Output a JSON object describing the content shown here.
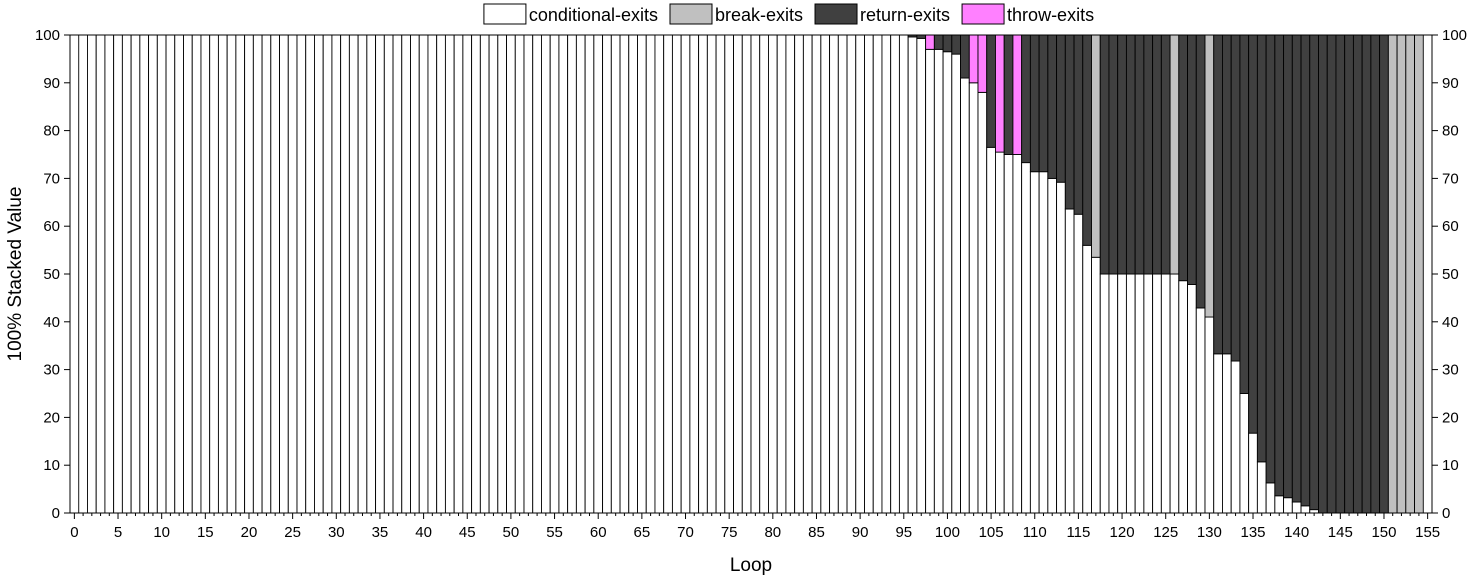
{
  "chart_data": {
    "type": "bar",
    "stacked": "percent",
    "xlabel": "Loop",
    "ylabel": "100% Stacked Value",
    "ylim": [
      0,
      100
    ],
    "y_ticks": [
      0,
      10,
      20,
      30,
      40,
      50,
      60,
      70,
      80,
      90,
      100
    ],
    "x_ticks": [
      0,
      5,
      10,
      15,
      20,
      25,
      30,
      35,
      40,
      45,
      50,
      55,
      60,
      65,
      70,
      75,
      80,
      85,
      90,
      95,
      100,
      105,
      110,
      115,
      120,
      125,
      130,
      135,
      140,
      145,
      150,
      155
    ],
    "x_range": [
      0,
      155
    ],
    "grid": false,
    "secondary_y_axis": true,
    "legend_position": "top-center",
    "colors": {
      "conditional-exits": "#ffffff",
      "break-exits": "#c0c0c0",
      "return-exits": "#404040",
      "throw-exits": "#ff80ff"
    },
    "x": [
      1,
      2,
      3,
      4,
      5,
      6,
      7,
      8,
      9,
      10,
      11,
      12,
      13,
      14,
      15,
      16,
      17,
      18,
      19,
      20,
      21,
      22,
      23,
      24,
      25,
      26,
      27,
      28,
      29,
      30,
      31,
      32,
      33,
      34,
      35,
      36,
      37,
      38,
      39,
      40,
      41,
      42,
      43,
      44,
      45,
      46,
      47,
      48,
      49,
      50,
      51,
      52,
      53,
      54,
      55,
      56,
      57,
      58,
      59,
      60,
      61,
      62,
      63,
      64,
      65,
      66,
      67,
      68,
      69,
      70,
      71,
      72,
      73,
      74,
      75,
      76,
      77,
      78,
      79,
      80,
      81,
      82,
      83,
      84,
      85,
      86,
      87,
      88,
      89,
      90,
      91,
      92,
      93,
      94,
      95,
      96,
      97,
      98,
      99,
      100,
      101,
      102,
      103,
      104,
      105,
      106,
      107,
      108,
      109,
      110,
      111,
      112,
      113,
      114,
      115,
      116,
      117,
      118,
      119,
      120,
      121,
      122,
      123,
      124,
      125,
      126,
      127,
      128,
      129,
      130,
      131,
      132,
      133,
      134,
      135,
      136,
      137,
      138,
      139,
      140,
      141,
      142,
      143,
      144,
      145,
      146,
      147,
      148,
      149,
      150,
      151,
      152,
      153,
      154
    ],
    "series": [
      {
        "name": "conditional-exits",
        "values": [
          100,
          100,
          100,
          100,
          100,
          100,
          100,
          100,
          100,
          100,
          100,
          100,
          100,
          100,
          100,
          100,
          100,
          100,
          100,
          100,
          100,
          100,
          100,
          100,
          100,
          100,
          100,
          100,
          100,
          100,
          100,
          100,
          100,
          100,
          100,
          100,
          100,
          100,
          100,
          100,
          100,
          100,
          100,
          100,
          100,
          100,
          100,
          100,
          100,
          100,
          100,
          100,
          100,
          100,
          100,
          100,
          100,
          100,
          100,
          100,
          100,
          100,
          100,
          100,
          100,
          100,
          100,
          100,
          100,
          100,
          100,
          100,
          100,
          100,
          100,
          100,
          100,
          100,
          100,
          100,
          100,
          100,
          100,
          100,
          100,
          100,
          100,
          100,
          100,
          100,
          100,
          100,
          100,
          100,
          100,
          99.6,
          99.3,
          97,
          97,
          96.5,
          96,
          91,
          90,
          88,
          76.5,
          75.5,
          75,
          75,
          73.3,
          71.4,
          71.4,
          70,
          69.2,
          63.6,
          62.5,
          56,
          53.5,
          50,
          50,
          50,
          50,
          50,
          50,
          50,
          50,
          50,
          48.6,
          47.8,
          42.9,
          41,
          33.3,
          33.3,
          31.8,
          25,
          16.7,
          10.7,
          6.3,
          3.6,
          3.2,
          2.3,
          1.5,
          0.7,
          0,
          0,
          0,
          0,
          0,
          0,
          0,
          0,
          0,
          0,
          0,
          0
        ]
      },
      {
        "name": "break-exits",
        "values": [
          0,
          0,
          0,
          0,
          0,
          0,
          0,
          0,
          0,
          0,
          0,
          0,
          0,
          0,
          0,
          0,
          0,
          0,
          0,
          0,
          0,
          0,
          0,
          0,
          0,
          0,
          0,
          0,
          0,
          0,
          0,
          0,
          0,
          0,
          0,
          0,
          0,
          0,
          0,
          0,
          0,
          0,
          0,
          0,
          0,
          0,
          0,
          0,
          0,
          0,
          0,
          0,
          0,
          0,
          0,
          0,
          0,
          0,
          0,
          0,
          0,
          0,
          0,
          0,
          0,
          0,
          0,
          0,
          0,
          0,
          0,
          0,
          0,
          0,
          0,
          0,
          0,
          0,
          0,
          0,
          0,
          0,
          0,
          0,
          0,
          0,
          0,
          0,
          0,
          0,
          0,
          0,
          0,
          0,
          0,
          0,
          0,
          0,
          0,
          0,
          0,
          0,
          0,
          0,
          0,
          0,
          0,
          0,
          0,
          0,
          0,
          0,
          0,
          0,
          0,
          0,
          46.5,
          0,
          0,
          0,
          0,
          0,
          0,
          0,
          0,
          50,
          0,
          0,
          0,
          59,
          0,
          0,
          0,
          0,
          0,
          0,
          0,
          0,
          0,
          0,
          0,
          0,
          0,
          0,
          0,
          0,
          0,
          0,
          0,
          0,
          100,
          100,
          100,
          100
        ]
      },
      {
        "name": "return-exits",
        "values": [
          0,
          0,
          0,
          0,
          0,
          0,
          0,
          0,
          0,
          0,
          0,
          0,
          0,
          0,
          0,
          0,
          0,
          0,
          0,
          0,
          0,
          0,
          0,
          0,
          0,
          0,
          0,
          0,
          0,
          0,
          0,
          0,
          0,
          0,
          0,
          0,
          0,
          0,
          0,
          0,
          0,
          0,
          0,
          0,
          0,
          0,
          0,
          0,
          0,
          0,
          0,
          0,
          0,
          0,
          0,
          0,
          0,
          0,
          0,
          0,
          0,
          0,
          0,
          0,
          0,
          0,
          0,
          0,
          0,
          0,
          0,
          0,
          0,
          0,
          0,
          0,
          0,
          0,
          0,
          0,
          0,
          0,
          0,
          0,
          0,
          0,
          0,
          0,
          0,
          0,
          0,
          0,
          0,
          0,
          0,
          0.4,
          0.7,
          0,
          3,
          3.5,
          4,
          9,
          0,
          0,
          23.5,
          0,
          25,
          0,
          26.7,
          28.6,
          28.6,
          30,
          30.8,
          36.4,
          37.5,
          44,
          0,
          50,
          50,
          50,
          50,
          50,
          50,
          50,
          50,
          0,
          51.4,
          52.2,
          57.1,
          0,
          66.7,
          66.7,
          68.2,
          75,
          83.3,
          89.3,
          93.7,
          96.4,
          96.8,
          97.7,
          98.5,
          99.3,
          100,
          100,
          100,
          100,
          100,
          100,
          100,
          100,
          0,
          0,
          0,
          0
        ]
      },
      {
        "name": "throw-exits",
        "values": [
          0,
          0,
          0,
          0,
          0,
          0,
          0,
          0,
          0,
          0,
          0,
          0,
          0,
          0,
          0,
          0,
          0,
          0,
          0,
          0,
          0,
          0,
          0,
          0,
          0,
          0,
          0,
          0,
          0,
          0,
          0,
          0,
          0,
          0,
          0,
          0,
          0,
          0,
          0,
          0,
          0,
          0,
          0,
          0,
          0,
          0,
          0,
          0,
          0,
          0,
          0,
          0,
          0,
          0,
          0,
          0,
          0,
          0,
          0,
          0,
          0,
          0,
          0,
          0,
          0,
          0,
          0,
          0,
          0,
          0,
          0,
          0,
          0,
          0,
          0,
          0,
          0,
          0,
          0,
          0,
          0,
          0,
          0,
          0,
          0,
          0,
          0,
          0,
          0,
          0,
          0,
          0,
          0,
          0,
          0,
          0,
          0,
          3,
          0,
          0,
          0,
          0,
          10,
          12,
          0,
          24.5,
          0,
          25,
          0,
          0,
          0,
          0,
          0,
          0,
          0,
          0,
          0,
          0,
          0,
          0,
          0,
          0,
          0,
          0,
          0,
          0,
          0,
          0,
          0,
          0,
          0,
          0,
          0,
          0,
          0,
          0,
          0,
          0,
          0,
          0,
          0,
          0,
          0,
          0,
          0,
          0,
          0,
          0,
          0,
          0,
          0,
          0,
          0,
          0
        ]
      }
    ]
  }
}
